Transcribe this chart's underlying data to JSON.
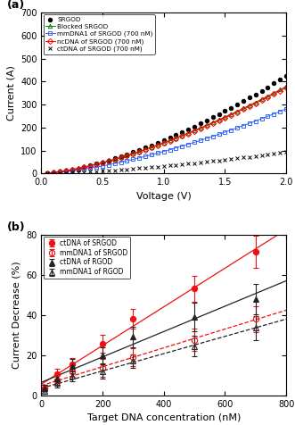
{
  "panel_a": {
    "title": "(a)",
    "xlabel": "Voltage (V)",
    "ylabel": "Current (A)",
    "xlim": [
      0,
      2.0
    ],
    "ylim": [
      0,
      700
    ],
    "yticks": [
      0,
      100,
      200,
      300,
      400,
      500,
      600,
      700
    ],
    "xticks": [
      0.0,
      0.5,
      1.0,
      1.5,
      2.0
    ],
    "series": [
      {
        "label": "SRGOD",
        "color": "black",
        "marker": "o",
        "markerfacecolor": "black",
        "markeredgecolor": "black",
        "linestyle": "none",
        "coef_a": 145.0,
        "coef_b": 1.55
      },
      {
        "label": "Blocked SRGOD",
        "color": "green",
        "marker": "^",
        "markerfacecolor": "none",
        "markeredgecolor": "green",
        "linestyle": "-",
        "coef_a": 134.0,
        "coef_b": 1.5
      },
      {
        "label": "mmDNA1 of SRGOD (700 nM)",
        "color": "#3366ff",
        "marker": "s",
        "markerfacecolor": "none",
        "markeredgecolor": "#3366ff",
        "linestyle": "-",
        "coef_a": 96.0,
        "coef_b": 1.55
      },
      {
        "label": "ncDNA of SRGOD (700 nM)",
        "color": "red",
        "marker": "D",
        "markerfacecolor": "none",
        "markeredgecolor": "red",
        "linestyle": "-",
        "coef_a": 132.0,
        "coef_b": 1.5
      },
      {
        "label": "ctDNA of SRGOD (700 nM)",
        "color": "black",
        "marker": "x",
        "markerfacecolor": "none",
        "markeredgecolor": "black",
        "linestyle": "none",
        "coef_a": 32.0,
        "coef_b": 1.55
      }
    ]
  },
  "panel_b": {
    "title": "(b)",
    "xlabel": "Target DNA concentration (nM)",
    "ylabel": "Current Decrease (%)",
    "xlim": [
      0,
      800
    ],
    "ylim": [
      0,
      80
    ],
    "yticks": [
      0,
      20,
      40,
      60,
      80
    ],
    "xticks": [
      0,
      200,
      400,
      600,
      800
    ],
    "series": [
      {
        "label": "ctDNA of SRGOD",
        "color": "#ee1111",
        "marker": "o",
        "markerfacecolor": "#ee1111",
        "markeredgecolor": "#ee1111",
        "linestyle": "-",
        "x": [
          10,
          50,
          100,
          200,
          300,
          500,
          700
        ],
        "y": [
          3.5,
          10.5,
          15.5,
          25.5,
          38.0,
          53.0,
          71.5
        ],
        "yerr": [
          1.5,
          2.5,
          3.0,
          4.5,
          5.0,
          6.5,
          8.0
        ]
      },
      {
        "label": "mmDNA1 of SRGOD",
        "color": "#ee1111",
        "marker": "o",
        "markerfacecolor": "none",
        "markeredgecolor": "#ee1111",
        "linestyle": "--",
        "x": [
          10,
          50,
          100,
          200,
          300,
          500,
          700
        ],
        "y": [
          3.5,
          7.5,
          12.0,
          13.5,
          19.0,
          27.5,
          38.0
        ],
        "yerr": [
          1.5,
          2.5,
          3.0,
          4.5,
          4.5,
          5.5,
          6.5
        ]
      },
      {
        "label": "ctDNA of RGOD",
        "color": "#222222",
        "marker": "^",
        "markerfacecolor": "#222222",
        "markeredgecolor": "#222222",
        "linestyle": "-",
        "x": [
          10,
          50,
          100,
          200,
          300,
          500,
          700
        ],
        "y": [
          3.5,
          8.5,
          14.5,
          20.0,
          29.0,
          39.0,
          48.0
        ],
        "yerr": [
          1.5,
          2.5,
          3.5,
          4.0,
          5.0,
          7.0,
          7.5
        ]
      },
      {
        "label": "mmDNA1 of RGOD",
        "color": "#222222",
        "marker": "^",
        "markerfacecolor": "none",
        "markeredgecolor": "#222222",
        "linestyle": "--",
        "x": [
          10,
          50,
          100,
          200,
          300,
          500,
          700
        ],
        "y": [
          2.0,
          6.0,
          9.5,
          12.0,
          17.0,
          24.5,
          33.5
        ],
        "yerr": [
          1.2,
          2.0,
          2.5,
          3.5,
          3.5,
          5.0,
          6.0
        ]
      }
    ]
  }
}
